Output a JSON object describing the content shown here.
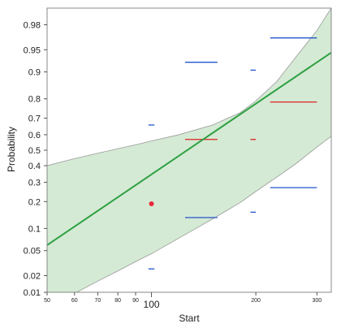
{
  "chart_data": {
    "type": "line",
    "title": "",
    "xlabel": "Start",
    "ylabel": "Probability",
    "x_scale": "log",
    "y_scale": "probit",
    "xlim": [
      50,
      330
    ],
    "ylim": [
      0.01,
      0.99
    ],
    "x_ticks": [
      50,
      60,
      70,
      80,
      90,
      100,
      200,
      300
    ],
    "x_tick_labels": [
      "50",
      "60",
      "70",
      "80",
      "90",
      "100",
      "200",
      "300"
    ],
    "y_ticks": [
      0.01,
      0.02,
      0.05,
      0.1,
      0.2,
      0.3,
      0.4,
      0.5,
      0.6,
      0.7,
      0.8,
      0.9,
      0.95,
      0.98
    ],
    "y_tick_labels": [
      "0.01",
      "0.02",
      "0.05",
      "0.1",
      "0.2",
      "0.3",
      "0.4",
      "0.5",
      "0.6",
      "0.7",
      "0.8",
      "0.9",
      "0.95",
      "0.98"
    ],
    "grid": false,
    "legend": "none",
    "colors": {
      "fit_line": "#2ea043",
      "band_fill": "#cfe8cf",
      "band_edge": "#999999",
      "interval_blue": "#2255cc",
      "interval_red": "#dd2222",
      "point_red": "#e8283a",
      "frame": "#888888"
    },
    "series": [
      {
        "kind": "fit_line",
        "x": [
          50,
          330
        ],
        "y": [
          0.06,
          0.945
        ]
      },
      {
        "kind": "confidence_band",
        "x": [
          50,
          60,
          70,
          80,
          90,
          100,
          120,
          150,
          180,
          200,
          230,
          260,
          300,
          330
        ],
        "upper": [
          0.4,
          0.445,
          0.48,
          0.51,
          0.535,
          0.56,
          0.6,
          0.66,
          0.73,
          0.79,
          0.87,
          0.935,
          0.975,
          0.99
        ],
        "lower": [
          0.005,
          0.0095,
          0.016,
          0.024,
          0.034,
          0.045,
          0.075,
          0.13,
          0.195,
          0.25,
          0.33,
          0.41,
          0.52,
          0.59
        ]
      },
      {
        "kind": "intervals",
        "segments": [
          {
            "x0": 98,
            "x1": 102,
            "y": 0.66,
            "color": "blue"
          },
          {
            "x0": 98,
            "x1": 102,
            "y": 0.026,
            "color": "blue"
          },
          {
            "x0": 125,
            "x1": 155,
            "y": 0.925,
            "color": "blue"
          },
          {
            "x0": 125,
            "x1": 155,
            "y": 0.57,
            "color": "red"
          },
          {
            "x0": 125,
            "x1": 155,
            "y": 0.135,
            "color": "blue"
          },
          {
            "x0": 193,
            "x1": 200,
            "y": 0.905,
            "color": "blue"
          },
          {
            "x0": 193,
            "x1": 200,
            "y": 0.57,
            "color": "red"
          },
          {
            "x0": 193,
            "x1": 200,
            "y": 0.155,
            "color": "blue"
          },
          {
            "x0": 220,
            "x1": 300,
            "y": 0.967,
            "color": "blue"
          },
          {
            "x0": 220,
            "x1": 300,
            "y": 0.785,
            "color": "red"
          },
          {
            "x0": 220,
            "x1": 300,
            "y": 0.27,
            "color": "blue"
          }
        ]
      },
      {
        "kind": "points",
        "x": [
          100
        ],
        "y": [
          0.19
        ]
      }
    ]
  }
}
